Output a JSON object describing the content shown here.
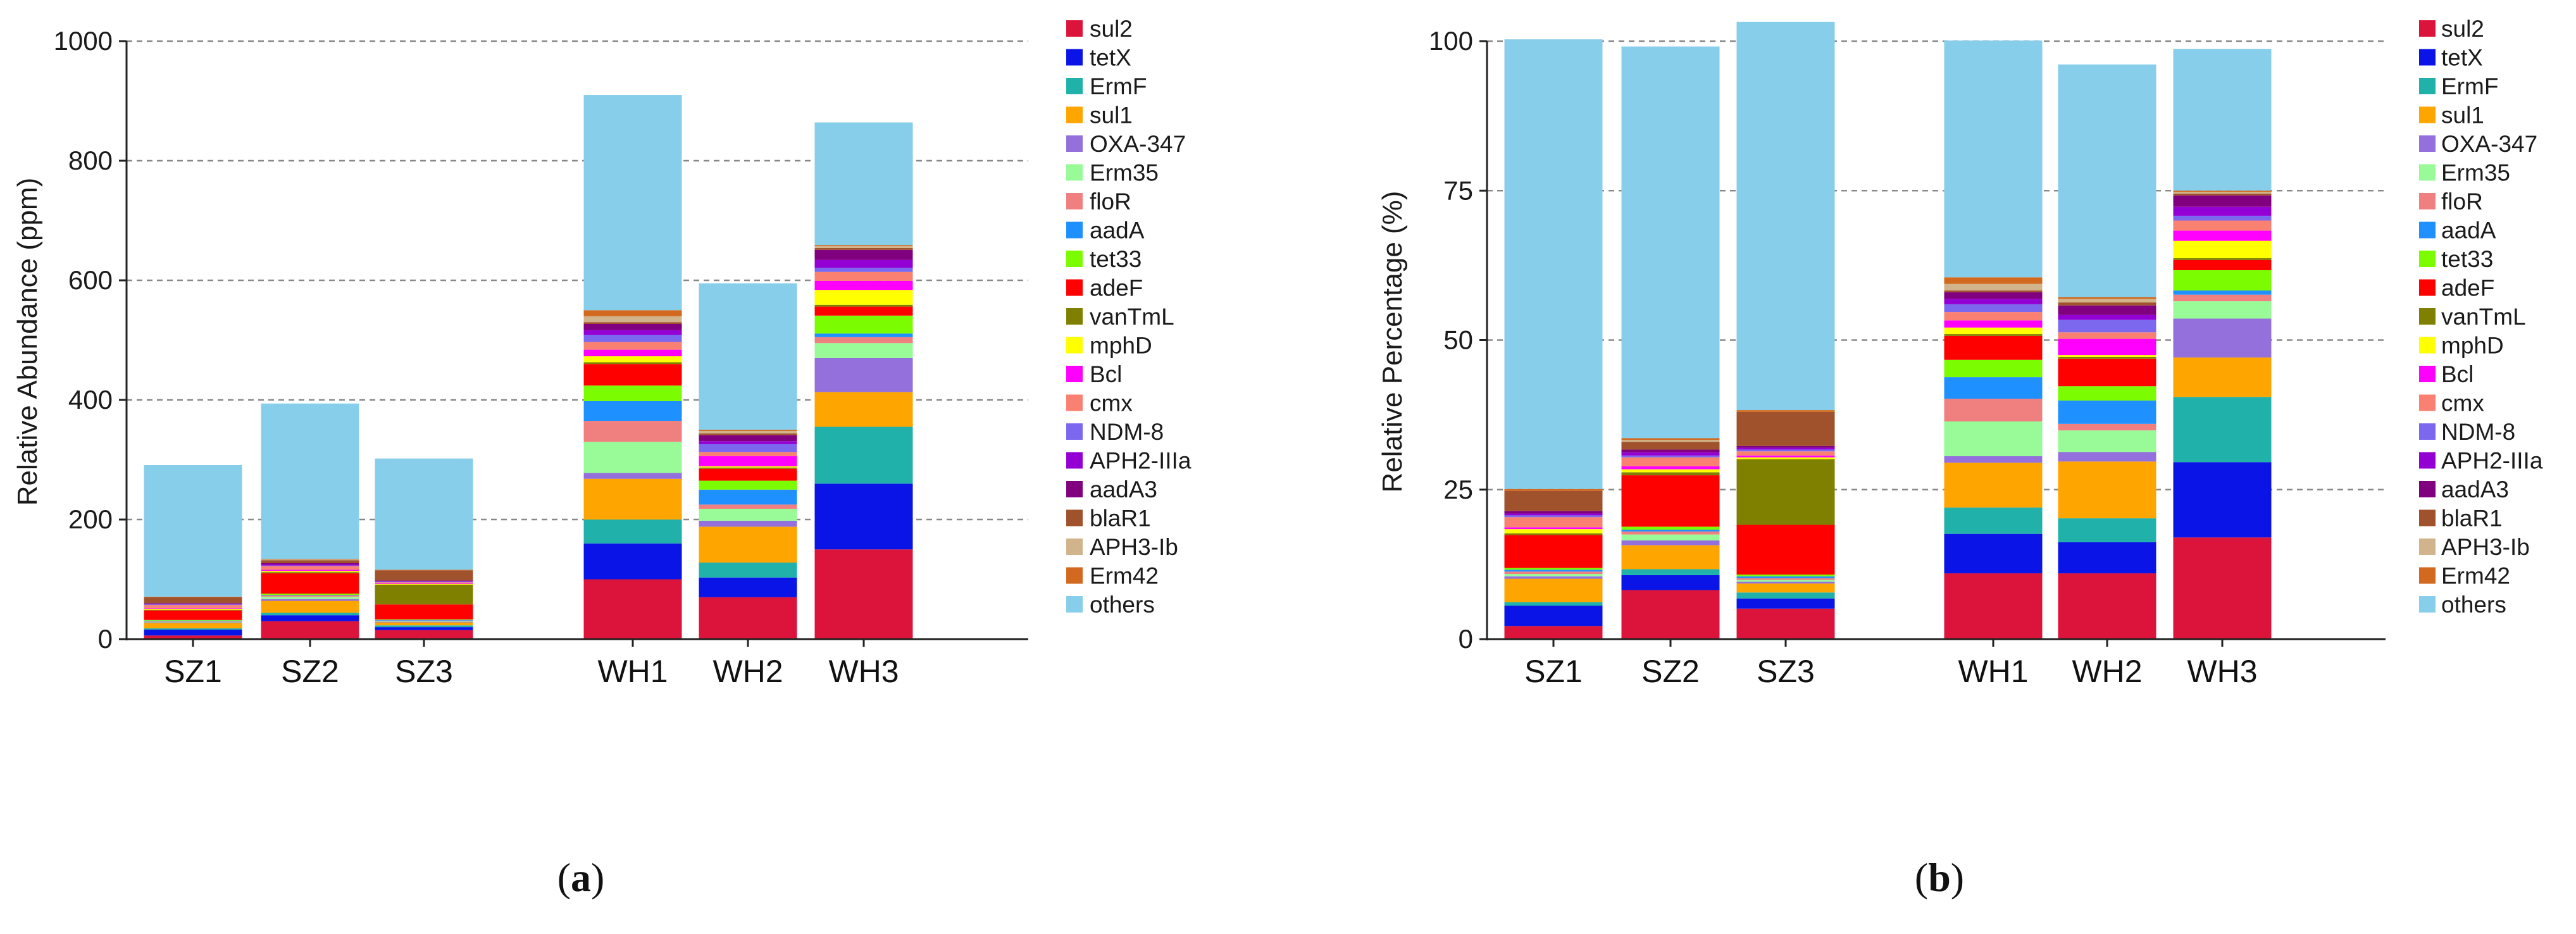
{
  "panel_captions": [
    "(a)",
    "(b)"
  ],
  "panel_caption_letters": [
    "a",
    "b"
  ],
  "colors": {
    "sul2": "#dc143c",
    "tetX": "#0a14e6",
    "ErmF": "#20b2aa",
    "sul1": "#ffa500",
    "OXA-347": "#9370db",
    "Erm35": "#98fb98",
    "floR": "#f08080",
    "aadA": "#1e90ff",
    "tet33": "#7cfc00",
    "adeF": "#ff0000",
    "vanTmL": "#808000",
    "mphD": "#ffff00",
    "Bcl": "#ff00ff",
    "cmx": "#fa8072",
    "NDM-8": "#7b68ee",
    "APH2-IIIa": "#9400d3",
    "aadA3": "#800080",
    "blaR1": "#a0522d",
    "APH3-Ib": "#d2b48c",
    "Erm42": "#d2691e",
    "others": "#87ceeb"
  },
  "chart_data": [
    {
      "type": "bar",
      "stacked": true,
      "title": "",
      "panel": "a",
      "xlabel": "",
      "ylabel": "Relative Abundance (ppm)",
      "ylim": [
        0,
        1000
      ],
      "yticks": [
        0,
        200,
        400,
        600,
        800,
        1000
      ],
      "grid": "horizontal-dashed",
      "legend_position": "right",
      "categories": [
        "SZ1",
        "SZ2",
        "SZ3",
        "WH1",
        "WH2",
        "WH3"
      ],
      "series": [
        {
          "name": "sul2",
          "values": [
            6,
            30,
            15,
            100,
            70,
            150
          ]
        },
        {
          "name": "tetX",
          "values": [
            10,
            10,
            5,
            60,
            33,
            110
          ]
        },
        {
          "name": "ErmF",
          "values": [
            2,
            4,
            3,
            40,
            25,
            95
          ]
        },
        {
          "name": "sul1",
          "values": [
            9,
            20,
            5,
            68,
            60,
            58
          ]
        },
        {
          "name": "OXA-347",
          "values": [
            1,
            3,
            1,
            10,
            10,
            57
          ]
        },
        {
          "name": "Erm35",
          "values": [
            1,
            4,
            1,
            52,
            20,
            25
          ]
        },
        {
          "name": "floR",
          "values": [
            1,
            2,
            1,
            35,
            7,
            10
          ]
        },
        {
          "name": "aadA",
          "values": [
            1,
            1,
            1,
            33,
            25,
            6
          ]
        },
        {
          "name": "tet33",
          "values": [
            1,
            2,
            1,
            26,
            15,
            30
          ]
        },
        {
          "name": "adeF",
          "values": [
            16,
            34,
            25,
            36,
            20,
            15
          ]
        },
        {
          "name": "vanTmL",
          "values": [
            1,
            2,
            33,
            3,
            2,
            3
          ]
        },
        {
          "name": "mphD",
          "values": [
            2,
            2,
            1,
            10,
            2,
            25
          ]
        },
        {
          "name": "Bcl",
          "values": [
            1,
            2,
            1,
            11,
            17,
            15
          ]
        },
        {
          "name": "cmx",
          "values": [
            5,
            6,
            2,
            13,
            7,
            15
          ]
        },
        {
          "name": "NDM-8",
          "values": [
            1,
            1,
            1,
            12,
            13,
            7
          ]
        },
        {
          "name": "APH2-IIIa",
          "values": [
            1,
            2,
            1,
            8,
            5,
            13
          ]
        },
        {
          "name": "aadA3",
          "values": [
            1,
            2,
            1,
            10,
            10,
            17
          ]
        },
        {
          "name": "blaR1",
          "values": [
            10,
            5,
            17,
            3,
            3,
            3
          ]
        },
        {
          "name": "APH3-Ib",
          "values": [
            0,
            1,
            0,
            10,
            4,
            3
          ]
        },
        {
          "name": "Erm42",
          "values": [
            1,
            1,
            1,
            10,
            2,
            2
          ]
        },
        {
          "name": "others",
          "values": [
            220,
            260,
            186,
            360,
            245,
            205
          ]
        }
      ]
    },
    {
      "type": "bar",
      "stacked": true,
      "title": "",
      "panel": "b",
      "xlabel": "",
      "ylabel": "Relative Percentage (%)",
      "ylim": [
        0,
        100
      ],
      "yticks": [
        0,
        25,
        50,
        75,
        100
      ],
      "grid": "horizontal-dashed",
      "legend_position": "right",
      "categories": [
        "SZ1",
        "SZ2",
        "SZ3",
        "WH1",
        "WH2",
        "WH3"
      ],
      "series": [
        {
          "name": "sul2",
          "values": [
            2.2,
            8.2,
            5.1,
            11.0,
            11.0,
            17.0
          ]
        },
        {
          "name": "tetX",
          "values": [
            3.4,
            2.5,
            1.7,
            6.6,
            5.2,
            12.6
          ]
        },
        {
          "name": "ErmF",
          "values": [
            0.6,
            1.0,
            1.0,
            4.4,
            4.0,
            10.9
          ]
        },
        {
          "name": "sul1",
          "values": [
            3.9,
            4.0,
            1.5,
            7.5,
            9.5,
            6.6
          ]
        },
        {
          "name": "OXA-347",
          "values": [
            0.4,
            0.8,
            0.3,
            1.1,
            1.6,
            6.5
          ]
        },
        {
          "name": "Erm35",
          "values": [
            0.4,
            1.0,
            0.3,
            5.8,
            3.6,
            2.9
          ]
        },
        {
          "name": "floR",
          "values": [
            0.4,
            0.5,
            0.3,
            3.8,
            1.1,
            1.1
          ]
        },
        {
          "name": "aadA",
          "values": [
            0.3,
            0.3,
            0.3,
            3.6,
            3.9,
            0.7
          ]
        },
        {
          "name": "tet33",
          "values": [
            0.3,
            0.5,
            0.3,
            2.9,
            2.4,
            3.4
          ]
        },
        {
          "name": "adeF",
          "values": [
            5.5,
            8.6,
            8.3,
            4.0,
            4.6,
            1.7
          ]
        },
        {
          "name": "vanTmL",
          "values": [
            0.3,
            0.5,
            11.0,
            0.3,
            0.3,
            0.3
          ]
        },
        {
          "name": "mphD",
          "values": [
            0.7,
            0.5,
            0.3,
            1.1,
            0.3,
            2.9
          ]
        },
        {
          "name": "Bcl",
          "values": [
            0.3,
            0.5,
            0.3,
            1.2,
            2.7,
            1.7
          ]
        },
        {
          "name": "cmx",
          "values": [
            1.7,
            1.5,
            0.7,
            1.4,
            1.1,
            1.7
          ]
        },
        {
          "name": "NDM-8",
          "values": [
            0.3,
            0.3,
            0.3,
            1.3,
            2.1,
            0.8
          ]
        },
        {
          "name": "APH2-IIIa",
          "values": [
            0.3,
            0.5,
            0.3,
            0.9,
            0.8,
            1.5
          ]
        },
        {
          "name": "aadA3",
          "values": [
            0.4,
            0.5,
            0.3,
            1.1,
            1.6,
            1.9
          ]
        },
        {
          "name": "blaR1",
          "values": [
            3.4,
            1.3,
            5.7,
            0.3,
            0.5,
            0.3
          ]
        },
        {
          "name": "APH3-Ib",
          "values": [
            0.0,
            0.3,
            0.0,
            1.1,
            0.6,
            0.3
          ]
        },
        {
          "name": "Erm42",
          "values": [
            0.3,
            0.3,
            0.3,
            1.1,
            0.3,
            0.2
          ]
        },
        {
          "name": "others",
          "values": [
            75.2,
            65.5,
            64.9,
            39.6,
            38.9,
            23.7
          ]
        }
      ]
    }
  ]
}
